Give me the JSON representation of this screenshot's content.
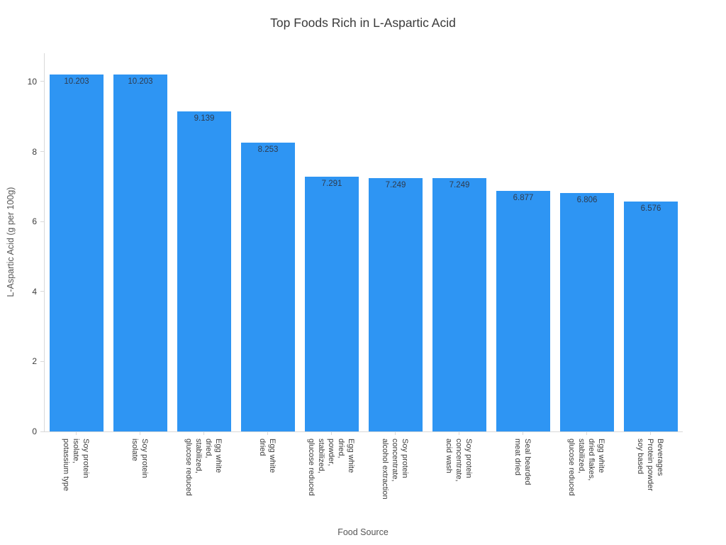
{
  "chart_data": {
    "type": "bar",
    "title": "Top Foods Rich in L-Aspartic Acid",
    "xlabel": "Food Source",
    "ylabel": "L-Aspartic Acid (g per 100g)",
    "categories": [
      "Soy protein\nisolate,\npotassium type",
      "Soy protein\nisolate",
      "Egg white\ndried,\nstabilized,\nglucose reduced",
      "Egg white\ndried",
      "Egg white\ndried,\npowder,\nstabilized,\nglucose reduced",
      "Soy protein\nconcentrate,\nalcohol extraction",
      "Soy protein\nconcentrate,\nacid wash",
      "Seal bearded\nmeat dried",
      "Egg white\ndried flakes,\nstabilized,\nglucose reduced",
      "Beverages\nProtein powder\nsoy based"
    ],
    "values": [
      10.203,
      10.203,
      9.139,
      8.253,
      7.291,
      7.249,
      7.249,
      6.877,
      6.806,
      6.576
    ],
    "value_labels": [
      "10.203",
      "10.203",
      "9.139",
      "8.253",
      "7.291",
      "7.249",
      "7.249",
      "6.877",
      "6.806",
      "6.576"
    ],
    "yticks": [
      0,
      2,
      4,
      6,
      8,
      10
    ],
    "ylim": [
      0,
      10.81
    ],
    "grid": false,
    "legend": null,
    "bar_label_position": "inside-top",
    "colors": {
      "bar": "#2E95F3",
      "bar_label_text": "#2e3b4e",
      "axis_line": "#d9d9d9",
      "tick_text": "#3c3c3c",
      "axis_title_text": "#555555",
      "title_text": "#3a3a3a",
      "background": "#ffffff"
    }
  }
}
